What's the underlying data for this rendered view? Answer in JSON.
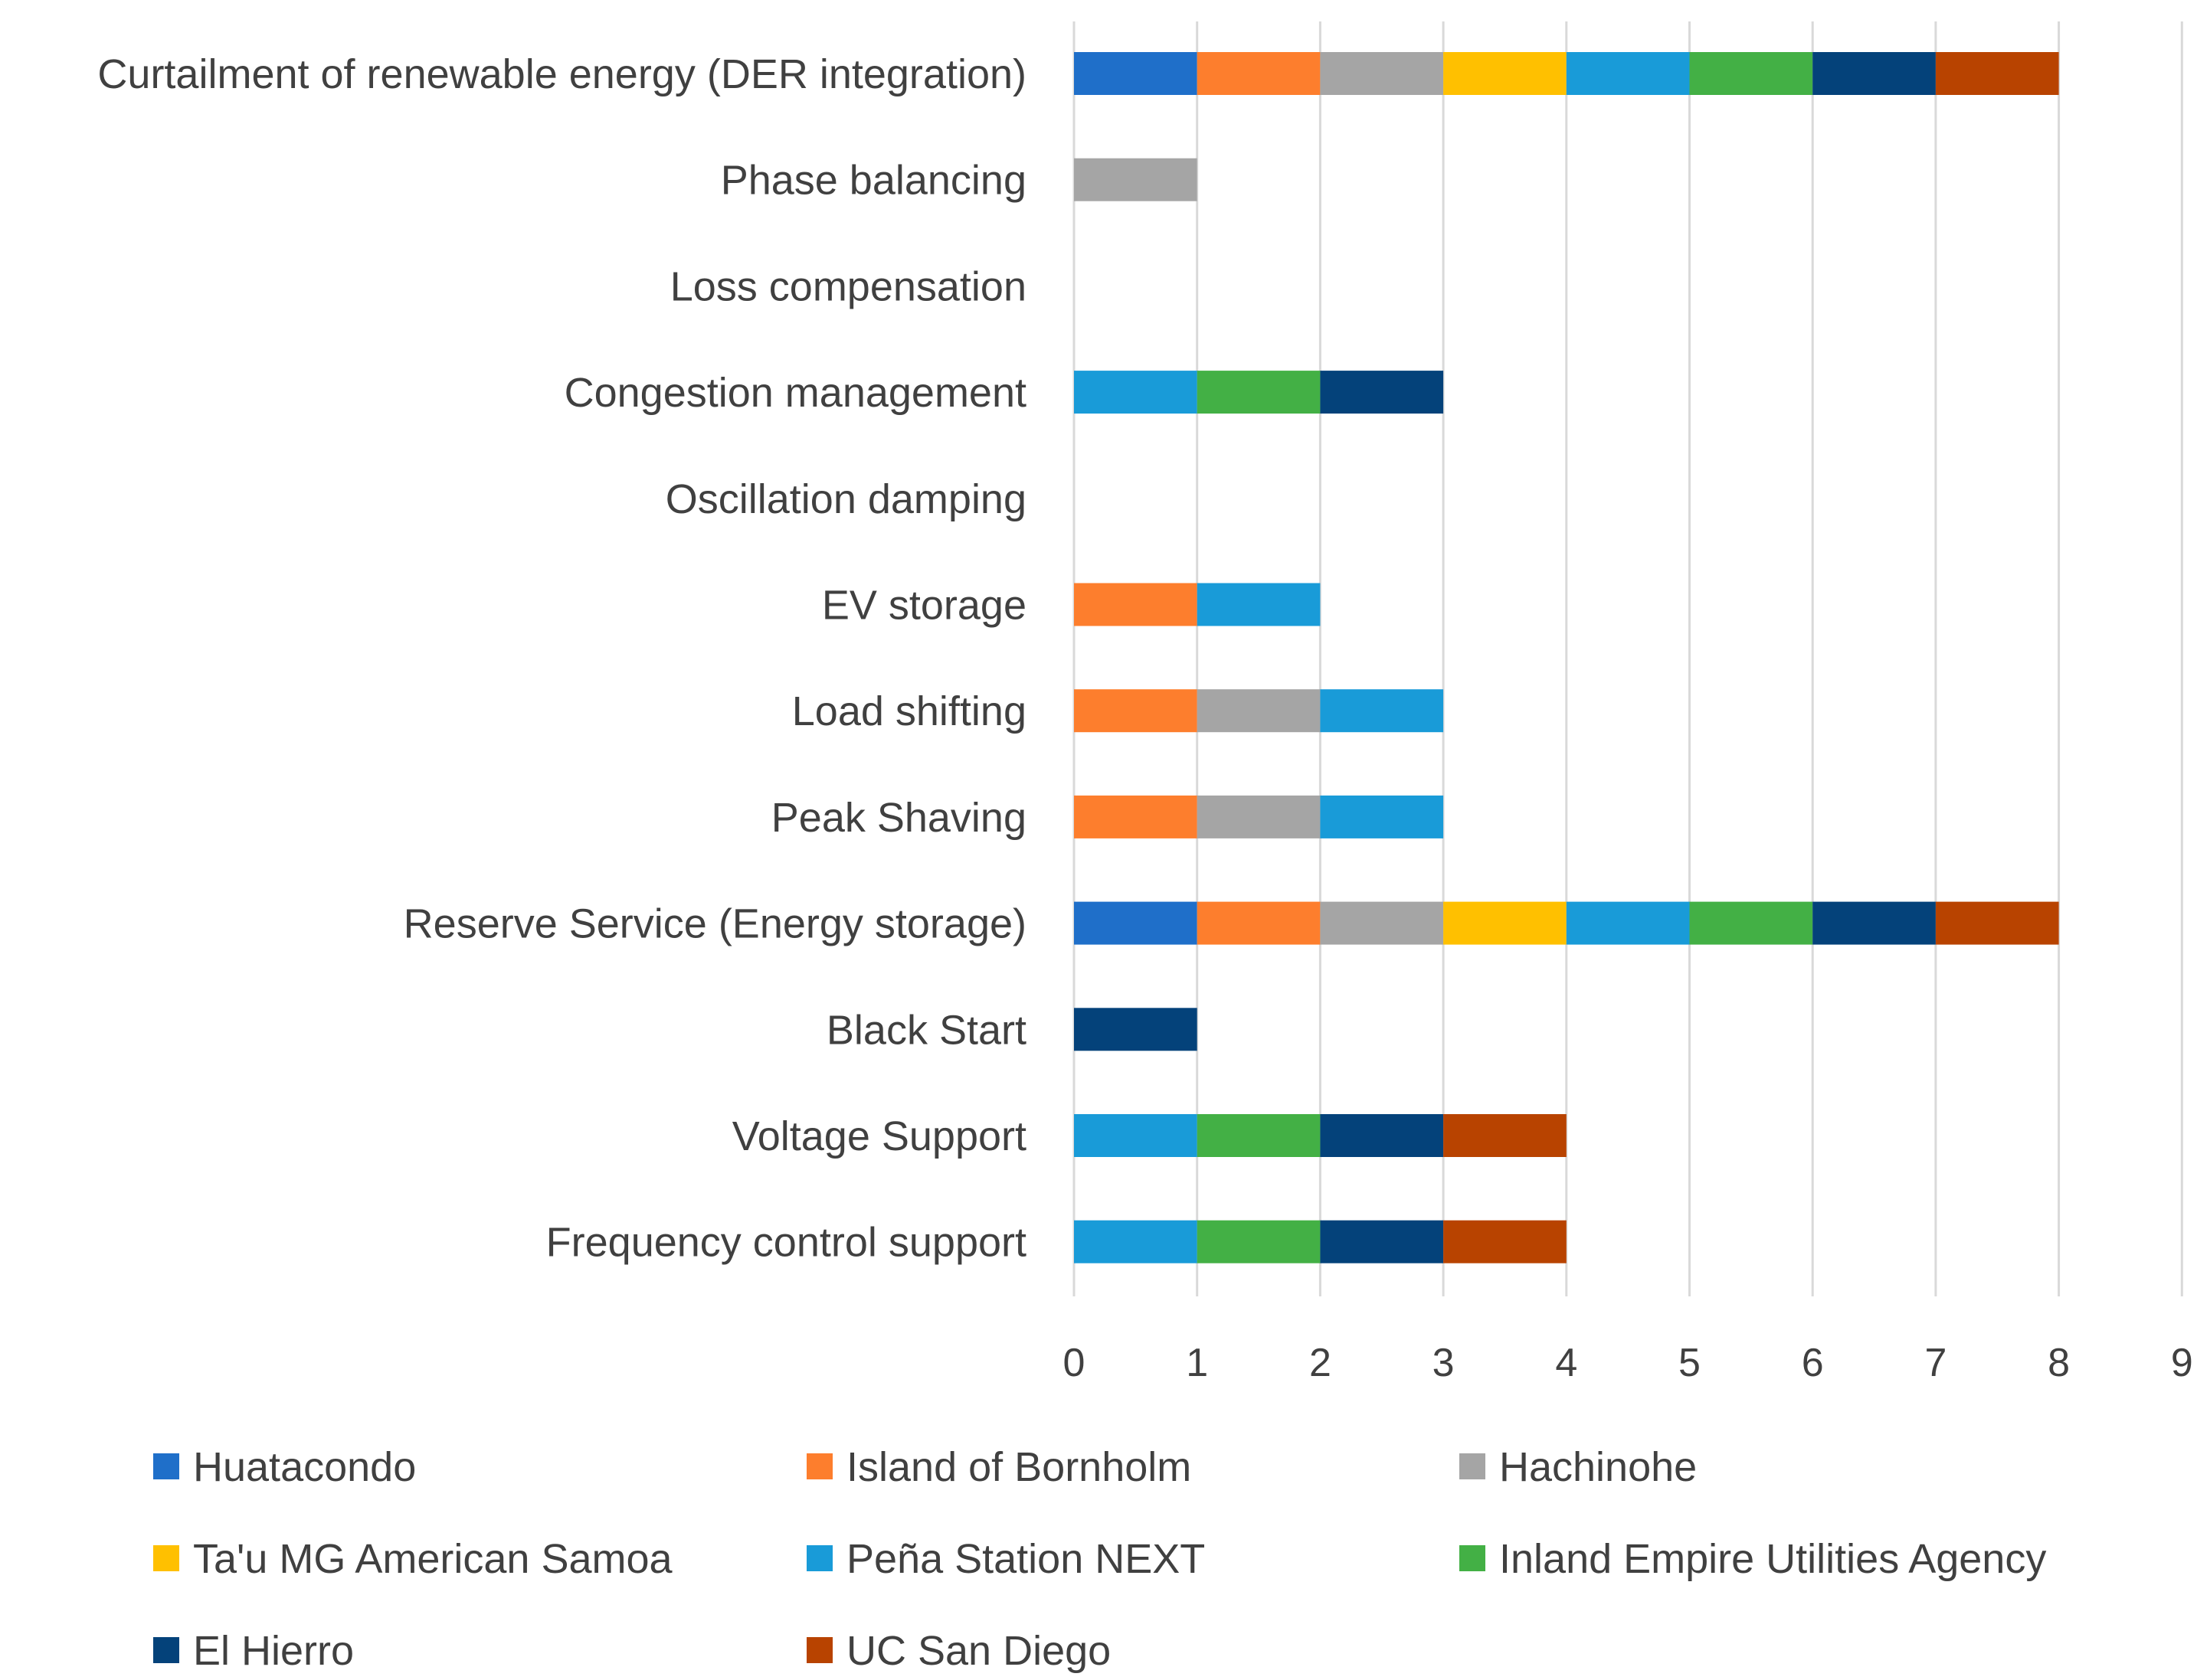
{
  "chart_data": {
    "type": "bar",
    "orientation": "horizontal",
    "stacked": true,
    "title": "",
    "xlabel": "",
    "ylabel": "",
    "xlim": [
      0,
      9
    ],
    "xticks": [
      0,
      1,
      2,
      3,
      4,
      5,
      6,
      7,
      8,
      9
    ],
    "grid": true,
    "legend_position": "bottom",
    "categories": [
      "Curtailment of renewable energy (DER integration)",
      "Phase balancing",
      "Loss compensation",
      "Congestion management",
      "Oscillation damping",
      "EV storage",
      "Load shifting",
      "Peak Shaving",
      "Reserve Service (Energy storage)",
      "Black Start",
      "Voltage Support",
      "Frequency control support"
    ],
    "series": [
      {
        "name": "Huatacondo",
        "color": "#1f6fc9",
        "values": [
          1,
          0,
          0,
          0,
          0,
          0,
          0,
          0,
          1,
          0,
          0,
          0
        ]
      },
      {
        "name": "Island of Bornholm",
        "color": "#fd7e2d",
        "values": [
          1,
          0,
          0,
          0,
          0,
          1,
          1,
          1,
          1,
          0,
          0,
          0
        ]
      },
      {
        "name": "Hachinohe",
        "color": "#a5a5a5",
        "values": [
          1,
          1,
          0,
          0,
          0,
          0,
          1,
          1,
          1,
          0,
          0,
          0
        ]
      },
      {
        "name": "Ta'u MG American Samoa",
        "color": "#ffc000",
        "values": [
          1,
          0,
          0,
          0,
          0,
          0,
          0,
          0,
          1,
          0,
          0,
          0
        ]
      },
      {
        "name": "Peña Station NEXT",
        "color": "#199bd8",
        "values": [
          1,
          0,
          0,
          1,
          0,
          1,
          1,
          1,
          1,
          0,
          1,
          1
        ]
      },
      {
        "name": "Inland Empire Utilities Agency",
        "color": "#43b045",
        "values": [
          1,
          0,
          0,
          1,
          0,
          0,
          0,
          0,
          1,
          0,
          1,
          1
        ]
      },
      {
        "name": "El Hierro",
        "color": "#04427a",
        "values": [
          1,
          0,
          0,
          1,
          0,
          0,
          0,
          0,
          1,
          1,
          1,
          1
        ]
      },
      {
        "name": "UC San Diego",
        "color": "#b84300",
        "values": [
          1,
          0,
          0,
          0,
          0,
          0,
          0,
          0,
          1,
          0,
          1,
          1
        ]
      }
    ]
  }
}
